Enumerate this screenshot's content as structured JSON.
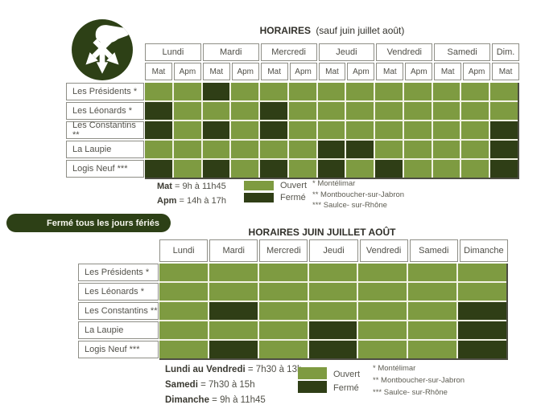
{
  "colors": {
    "open": "#7e9b41",
    "closed": "#2f3e16",
    "banner_bg": "#2d4016",
    "grid_line": "#f2f2e3"
  },
  "logo": {
    "icon": "waste-sorting-hand-icon"
  },
  "banner": {
    "label": "Fermé tous les jours fériés"
  },
  "table1": {
    "title_bold": "HORAIRES",
    "title_note": "(sauf juin juillet août)",
    "days": [
      {
        "label": "Lundi",
        "span": 2
      },
      {
        "label": "Mardi",
        "span": 2
      },
      {
        "label": "Mercredi",
        "span": 2
      },
      {
        "label": "Jeudi",
        "span": 2
      },
      {
        "label": "Vendredi",
        "span": 2
      },
      {
        "label": "Samedi",
        "span": 2
      },
      {
        "label": "Dim.",
        "span": 1
      }
    ],
    "subcolumns": [
      "Mat",
      "Apm",
      "Mat",
      "Apm",
      "Mat",
      "Apm",
      "Mat",
      "Apm",
      "Mat",
      "Apm",
      "Mat",
      "Apm",
      "Mat"
    ],
    "rows": [
      {
        "label": "Les Présidents *",
        "cells": [
          "O",
          "O",
          "F",
          "O",
          "O",
          "O",
          "O",
          "O",
          "O",
          "O",
          "O",
          "O",
          "O"
        ]
      },
      {
        "label": "Les Léonards *",
        "cells": [
          "F",
          "O",
          "O",
          "O",
          "F",
          "O",
          "O",
          "O",
          "O",
          "O",
          "O",
          "O",
          "O"
        ]
      },
      {
        "label": "Les Constantins **",
        "cells": [
          "F",
          "O",
          "F",
          "O",
          "F",
          "O",
          "O",
          "O",
          "O",
          "O",
          "O",
          "O",
          "F"
        ]
      },
      {
        "label": "La Laupie",
        "cells": [
          "O",
          "O",
          "O",
          "O",
          "O",
          "O",
          "F",
          "F",
          "O",
          "O",
          "O",
          "O",
          "F"
        ]
      },
      {
        "label": "Logis Neuf ***",
        "cells": [
          "F",
          "O",
          "F",
          "O",
          "F",
          "O",
          "F",
          "O",
          "F",
          "O",
          "O",
          "O",
          "F"
        ]
      }
    ],
    "legend": {
      "times": [
        {
          "bold": "Mat",
          "rest": "= 9h à 11h45"
        },
        {
          "bold": "Apm",
          "rest": "= 14h à 17h"
        }
      ],
      "open_label": "Ouvert",
      "closed_label": "Fermé"
    },
    "footnotes": [
      "* Montélimar",
      "** Montboucher-sur-Jabron",
      "*** Saulce- sur-Rhône"
    ]
  },
  "table2": {
    "title": "HORAIRES JUIN JUILLET AOÛT",
    "days": [
      "Lundi",
      "Mardi",
      "Mercredi",
      "Jeudi",
      "Vendredi",
      "Samedi",
      "Dimanche"
    ],
    "rows": [
      {
        "label": "Les Présidents *",
        "cells": [
          "O",
          "O",
          "O",
          "O",
          "O",
          "O",
          "O"
        ]
      },
      {
        "label": "Les Léonards *",
        "cells": [
          "O",
          "O",
          "O",
          "O",
          "O",
          "O",
          "O"
        ]
      },
      {
        "label": "Les Constantins **",
        "cells": [
          "O",
          "F",
          "O",
          "O",
          "O",
          "O",
          "F"
        ]
      },
      {
        "label": "La Laupie",
        "cells": [
          "O",
          "O",
          "O",
          "F",
          "O",
          "O",
          "F"
        ]
      },
      {
        "label": "Logis Neuf ***",
        "cells": [
          "O",
          "F",
          "O",
          "F",
          "O",
          "O",
          "F"
        ]
      }
    ],
    "legend": {
      "times": [
        {
          "bold": "Lundi au Vendredi",
          "rest": "= 7h30 à 13h"
        },
        {
          "bold": "Samedi",
          "rest": "= 7h30 à 15h"
        },
        {
          "bold": "Dimanche",
          "rest": "= 9h à 11h45"
        }
      ],
      "open_label": "Ouvert",
      "closed_label": "Fermé"
    },
    "footnotes": [
      "* Montélimar",
      "** Montboucher-sur-Jabron",
      "*** Saulce- sur-Rhône"
    ]
  }
}
